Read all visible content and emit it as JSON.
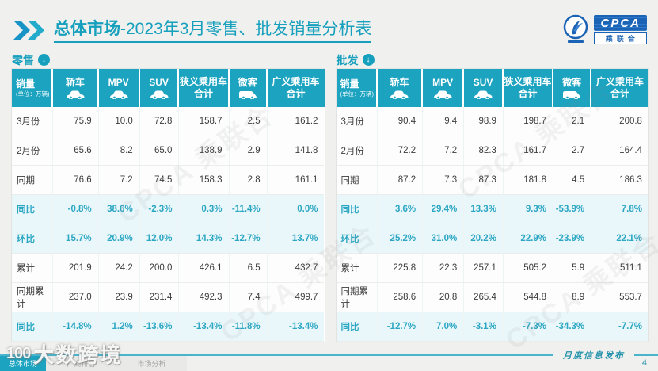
{
  "header": {
    "title_bold": "总体市场",
    "title_rest": "-2023年3月零售、批发销量分析表",
    "logo_main": "CPCA",
    "logo_sub": "乘联合"
  },
  "columns": [
    {
      "label": "销量",
      "sub": "(单位：万辆)"
    },
    {
      "label": "轿车",
      "icon": "car"
    },
    {
      "label": "MPV",
      "icon": "car"
    },
    {
      "label": "SUV",
      "icon": "car"
    },
    {
      "label": "狭义乘用车",
      "label2": "合计"
    },
    {
      "label": "微客",
      "icon": "van"
    },
    {
      "label": "广义乘用车",
      "label2": "合计"
    }
  ],
  "tables": [
    {
      "label": "零售",
      "rows": [
        {
          "label": "3月份",
          "hl": false,
          "values": [
            "75.9",
            "10.0",
            "72.8",
            "158.7",
            "2.5",
            "161.2"
          ]
        },
        {
          "label": "2月份",
          "hl": false,
          "values": [
            "65.6",
            "8.2",
            "65.0",
            "138.9",
            "2.9",
            "141.8"
          ]
        },
        {
          "label": "同期",
          "hl": false,
          "values": [
            "76.6",
            "7.2",
            "74.5",
            "158.3",
            "2.8",
            "161.1"
          ]
        },
        {
          "label": "同比",
          "hl": true,
          "values": [
            "-0.8%",
            "38.6%",
            "-2.3%",
            "0.3%",
            "-11.4%",
            "0.0%"
          ]
        },
        {
          "label": "环比",
          "hl": true,
          "values": [
            "15.7%",
            "20.9%",
            "12.0%",
            "14.3%",
            "-12.7%",
            "13.7%"
          ]
        },
        {
          "label": "累计",
          "hl": false,
          "values": [
            "201.9",
            "24.2",
            "200.0",
            "426.1",
            "6.5",
            "432.7"
          ]
        },
        {
          "label": "同期累计",
          "hl": false,
          "values": [
            "237.0",
            "23.9",
            "231.4",
            "492.3",
            "7.4",
            "499.7"
          ]
        },
        {
          "label": "同比",
          "hl": true,
          "values": [
            "-14.8%",
            "1.2%",
            "-13.6%",
            "-13.4%",
            "-11.8%",
            "-13.4%"
          ]
        }
      ]
    },
    {
      "label": "批发",
      "rows": [
        {
          "label": "3月份",
          "hl": false,
          "values": [
            "90.4",
            "9.4",
            "98.9",
            "198.7",
            "2.1",
            "200.8"
          ]
        },
        {
          "label": "2月份",
          "hl": false,
          "values": [
            "72.2",
            "7.2",
            "82.3",
            "161.7",
            "2.7",
            "164.4"
          ]
        },
        {
          "label": "同期",
          "hl": false,
          "values": [
            "87.2",
            "7.3",
            "87.3",
            "181.8",
            "4.5",
            "186.3"
          ]
        },
        {
          "label": "同比",
          "hl": true,
          "values": [
            "3.6%",
            "29.4%",
            "13.3%",
            "9.3%",
            "-53.9%",
            "7.8%"
          ]
        },
        {
          "label": "环比",
          "hl": true,
          "values": [
            "25.2%",
            "31.0%",
            "20.2%",
            "22.9%",
            "-23.9%",
            "22.1%"
          ]
        },
        {
          "label": "累计",
          "hl": false,
          "values": [
            "225.8",
            "22.3",
            "257.1",
            "505.2",
            "5.9",
            "511.1"
          ]
        },
        {
          "label": "同期累计",
          "hl": false,
          "values": [
            "258.6",
            "20.8",
            "265.4",
            "544.8",
            "8.9",
            "553.7"
          ]
        },
        {
          "label": "同比",
          "hl": true,
          "values": [
            "-12.7%",
            "7.0%",
            "-3.1%",
            "-7.3%",
            "-34.3%",
            "-7.7%"
          ]
        }
      ]
    }
  ],
  "footer": {
    "tabs": [
      "总体市场",
      "厂商排名",
      "市场分析"
    ],
    "publish": "月度信息发布",
    "page": "4"
  },
  "watermark": {
    "logo": "100",
    "text": "大数跨境"
  },
  "table_watermark": "CPCA 乘联合",
  "arrow_glyph": "↓",
  "colors": {
    "accent": "#1ba3c0",
    "title": "#17a0bd",
    "highlight_row_bg": "#e9f6fa",
    "highlight_text": "#2ba7c3",
    "logo_blue": "#1b63b5",
    "page_bg": "#f0f0ee"
  }
}
